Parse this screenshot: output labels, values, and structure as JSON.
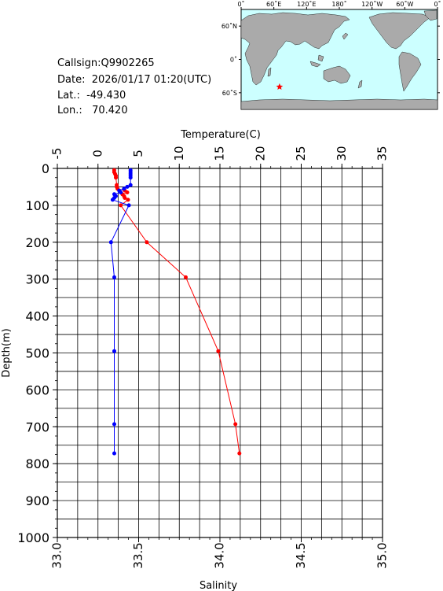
{
  "info": {
    "callsign": "Callsign:Q9902265",
    "date": "Date:  2026/01/17 01:20(UTC)",
    "lat": "Lat.:  -49.430",
    "lon": "Lon.:   70.420"
  },
  "map": {
    "lon_ticks": [
      "0˚",
      "60˚E",
      "120˚E",
      "180˚",
      "120˚W",
      "60˚W",
      "0˚"
    ],
    "lat_ticks": [
      "60˚N",
      "0˚",
      "60˚S"
    ],
    "marker": {
      "lon": 70.42,
      "lat": -49.43,
      "color": "#ff0000"
    },
    "ocean_color": "#ccffff",
    "land_color": "#aaaaaa"
  },
  "chart_data": {
    "type": "line",
    "title": "",
    "temperature_axis": {
      "label": "Temperature(C)",
      "range": [
        -5,
        35
      ],
      "ticks": [
        "-5",
        "0",
        "5",
        "10",
        "15",
        "20",
        "25",
        "30",
        "35"
      ]
    },
    "salinity_axis": {
      "label": "Salinity",
      "range": [
        33.0,
        35.0
      ],
      "ticks": [
        "33.0",
        "33.5",
        "34.0",
        "34.5",
        "35.0"
      ]
    },
    "depth_axis": {
      "label": "Depth(m)",
      "range": [
        0,
        1000
      ],
      "ticks": [
        "0",
        "100",
        "200",
        "300",
        "400",
        "500",
        "600",
        "700",
        "800",
        "900",
        "1000"
      ]
    },
    "grid": true,
    "series": [
      {
        "name": "Temperature",
        "axis": "temperature",
        "color": "#ff0000",
        "points": [
          [
            2.0,
            5
          ],
          [
            2.0,
            10
          ],
          [
            2.1,
            15
          ],
          [
            2.2,
            20
          ],
          [
            2.2,
            25
          ],
          [
            2.3,
            45
          ],
          [
            2.3,
            50
          ],
          [
            2.4,
            55
          ],
          [
            3.3,
            60
          ],
          [
            3.6,
            65
          ],
          [
            3.0,
            70
          ],
          [
            3.2,
            75
          ],
          [
            3.3,
            80
          ],
          [
            3.7,
            85
          ],
          [
            2.8,
            100
          ],
          [
            6.0,
            200
          ],
          [
            10.8,
            295
          ],
          [
            14.8,
            495
          ],
          [
            16.9,
            693
          ],
          [
            17.4,
            772
          ]
        ]
      },
      {
        "name": "Salinity",
        "axis": "salinity",
        "color": "#0000ff",
        "points": [
          [
            33.45,
            5
          ],
          [
            33.45,
            10
          ],
          [
            33.45,
            15
          ],
          [
            33.45,
            20
          ],
          [
            33.45,
            25
          ],
          [
            33.45,
            45
          ],
          [
            33.43,
            50
          ],
          [
            33.41,
            55
          ],
          [
            33.38,
            60
          ],
          [
            33.39,
            65
          ],
          [
            33.35,
            70
          ],
          [
            33.36,
            75
          ],
          [
            33.35,
            80
          ],
          [
            33.34,
            85
          ],
          [
            33.44,
            100
          ],
          [
            33.33,
            200
          ],
          [
            33.35,
            295
          ],
          [
            33.35,
            495
          ],
          [
            33.35,
            693
          ],
          [
            33.35,
            772
          ]
        ]
      }
    ]
  }
}
